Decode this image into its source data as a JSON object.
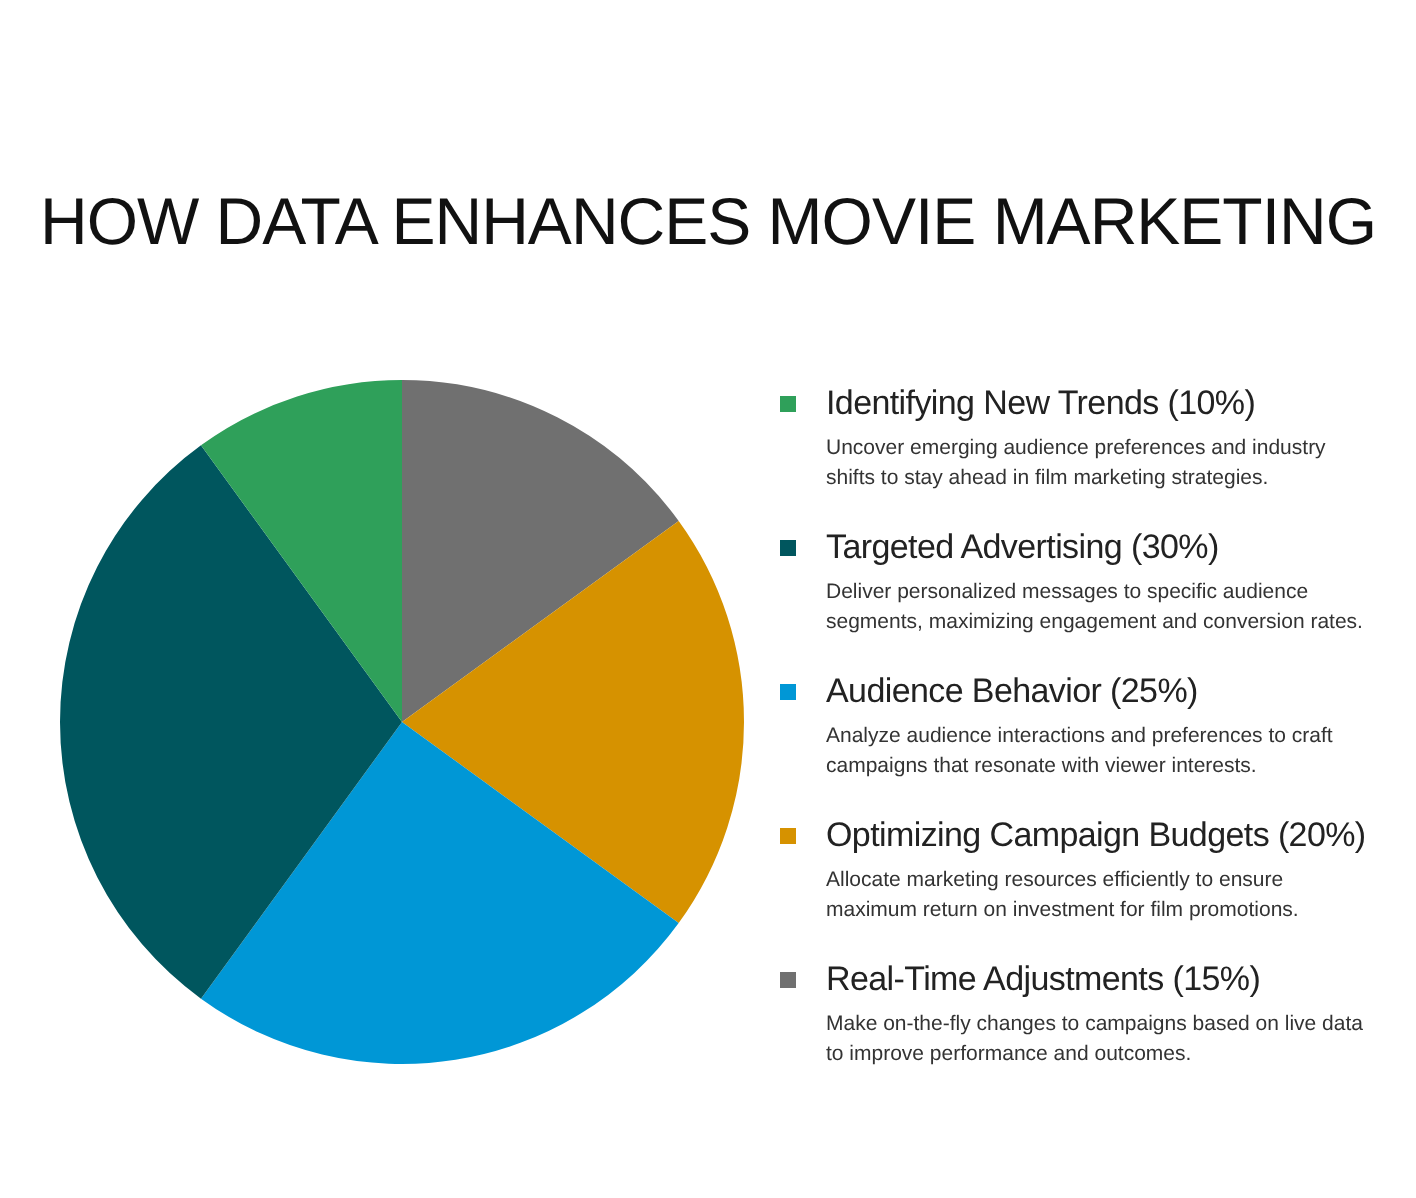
{
  "chart_data": {
    "type": "pie",
    "title": "HOW DATA ENHANCES MOVIE MARKETING",
    "categories": [
      "Identifying New Trends (10%)",
      "Targeted Advertising (30%)",
      "Audience Behavior (25%)",
      "Optimizing Campaign Budgets (20%)",
      "Real-Time Adjustments (15%)"
    ],
    "values": [
      10,
      30,
      25,
      20,
      15
    ],
    "colors": [
      "#2fa05a",
      "#00565e",
      "#0097d6",
      "#d69200",
      "#707070"
    ],
    "legend": "right",
    "annotations": [
      "Uncover emerging audience preferences and industry shifts to stay ahead in film marketing strategies.",
      "Deliver personalized messages to specific audience segments, maximizing engagement and conversion rates.",
      "Analyze audience interactions and preferences to craft campaigns that resonate with viewer interests.",
      "Allocate marketing resources efficiently to ensure maximum return on investment for film promotions.",
      "Make on-the-fly changes to campaigns based on live data to improve performance and outcomes."
    ]
  }
}
